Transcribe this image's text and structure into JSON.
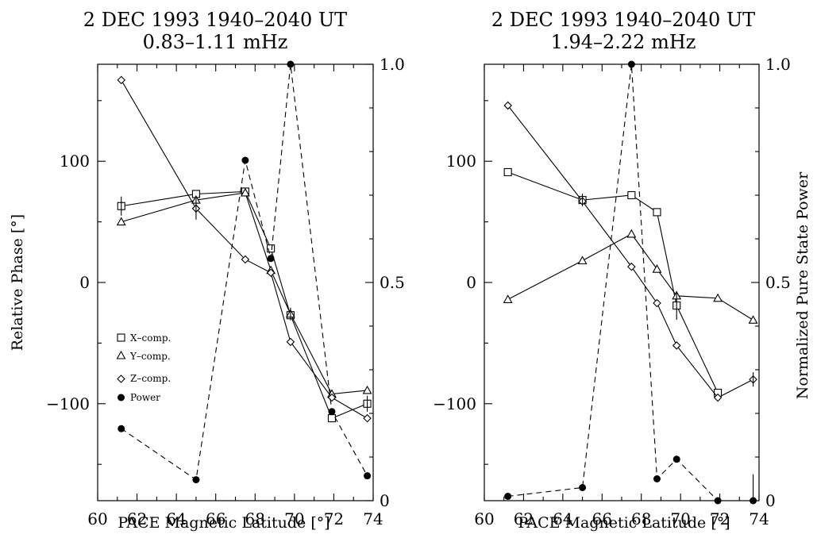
{
  "chart_data": [
    {
      "type": "line",
      "title": "2 DEC 1993 1940–2040 UT",
      "subtitle": "0.83–1.11 mHz",
      "xlabel": "PACE Magnetic Latitude [°]",
      "ylabel": "Relative Phase [°]",
      "y2label": "",
      "xlim": [
        60,
        74
      ],
      "ylim": [
        -180,
        180
      ],
      "y2lim": [
        0,
        1.0
      ],
      "xticks": [
        "60",
        "62",
        "64",
        "66",
        "68",
        "70",
        "72",
        "74"
      ],
      "yticks": [
        "100",
        "0",
        "−100"
      ],
      "y2ticks": [
        "1.0",
        "0.5",
        "0"
      ],
      "legend": {
        "position": "lower-left",
        "entries": [
          "X–comp.",
          "Y–comp.",
          "Z–comp.",
          "Power"
        ]
      },
      "series": [
        {
          "name": "X–comp.",
          "marker": "square",
          "axis": "phase",
          "x": [
            61.2,
            65.0,
            67.5,
            68.8,
            69.8,
            71.9,
            73.7
          ],
          "y": [
            63,
            73,
            75,
            28,
            -27,
            -112,
            -100
          ]
        },
        {
          "name": "Y–comp.",
          "marker": "triangle",
          "axis": "phase",
          "x": [
            61.2,
            65.0,
            67.5,
            68.8,
            69.8,
            71.9,
            73.7
          ],
          "y": [
            50,
            68,
            74,
            10,
            -26,
            -92,
            -89
          ]
        },
        {
          "name": "Z–comp.",
          "marker": "diamond",
          "axis": "phase",
          "x": [
            61.2,
            65.0,
            67.5,
            68.8,
            69.8,
            71.9,
            73.7
          ],
          "y": [
            167,
            61,
            19,
            8,
            -49,
            -95,
            -112
          ]
        },
        {
          "name": "Power",
          "marker": "dot",
          "axis": "power",
          "dashed": true,
          "x": [
            61.2,
            65.0,
            67.5,
            68.8,
            69.8,
            71.9,
            73.7
          ],
          "y": [
            0.165,
            0.048,
            0.78,
            0.555,
            1.0,
            0.204,
            0.057
          ]
        }
      ]
    },
    {
      "type": "line",
      "title": "2 DEC 1993 1940–2040 UT",
      "subtitle": "1.94–2.22 mHz",
      "xlabel": "PACE Magnetic Latitude [°]",
      "ylabel": "",
      "y2label": "Normalized Pure State Power",
      "xlim": [
        60,
        74
      ],
      "ylim": [
        -180,
        180
      ],
      "y2lim": [
        0,
        1.0
      ],
      "xticks": [
        "60",
        "62",
        "64",
        "66",
        "68",
        "70",
        "72",
        "74"
      ],
      "yticks": [
        "100",
        "0",
        "−100"
      ],
      "y2ticks": [
        "1.0",
        "0.5",
        "0"
      ],
      "legend": null,
      "series": [
        {
          "name": "X–comp.",
          "marker": "square",
          "axis": "phase",
          "x": [
            61.2,
            65.0,
            67.5,
            68.8,
            69.8,
            71.9,
            73.7
          ],
          "y": [
            91,
            68,
            72,
            58,
            -19,
            -91,
            null
          ]
        },
        {
          "name": "Y–comp.",
          "marker": "triangle",
          "axis": "phase",
          "x": [
            61.2,
            65.0,
            67.5,
            68.8,
            69.8,
            71.9,
            73.7
          ],
          "y": [
            -14,
            18,
            40,
            11,
            -11,
            -13,
            -31
          ]
        },
        {
          "name": "Z–comp.",
          "marker": "diamond",
          "axis": "phase",
          "x": [
            61.2,
            65.0,
            67.5,
            68.8,
            69.8,
            71.9,
            73.7
          ],
          "y": [
            146,
            67,
            13,
            -17,
            -52,
            -95,
            -80
          ]
        },
        {
          "name": "Power",
          "marker": "dot",
          "axis": "power",
          "dashed": true,
          "x": [
            61.2,
            65.0,
            67.5,
            68.8,
            69.8,
            71.9,
            73.7
          ],
          "y": [
            0.01,
            0.03,
            1.0,
            0.05,
            0.095,
            0.0,
            0.0
          ]
        }
      ]
    }
  ]
}
